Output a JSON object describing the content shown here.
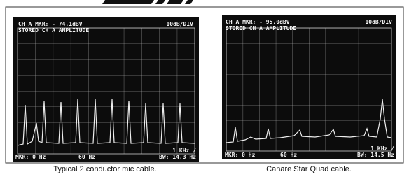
{
  "panels": [
    {
      "screen": {
        "header_left": "CH A MKR: - 74.1dBV",
        "header_right": "10dB/DIV",
        "subheader": "STORED CH A AMPLITUDE",
        "footer_marker": "MKR: 0 Hz",
        "footer_center": "60 Hz",
        "footer_bw": "BW: 14.3 Hz",
        "footer_span": "1 KHz /"
      },
      "caption": "Typical 2 conductor mic cable."
    },
    {
      "screen": {
        "header_left": "CH A MKR: - 95.0dBV",
        "header_right": "10dB/DIV",
        "subheader": "STORED CH A AMPLITUDE",
        "footer_marker": "MKR: 0 Hz",
        "footer_center": "60 Hz",
        "footer_bw": "BW: 14.5 Hz",
        "footer_span": "1 KHz /"
      },
      "caption": "Canare Star Quad cable."
    }
  ]
}
